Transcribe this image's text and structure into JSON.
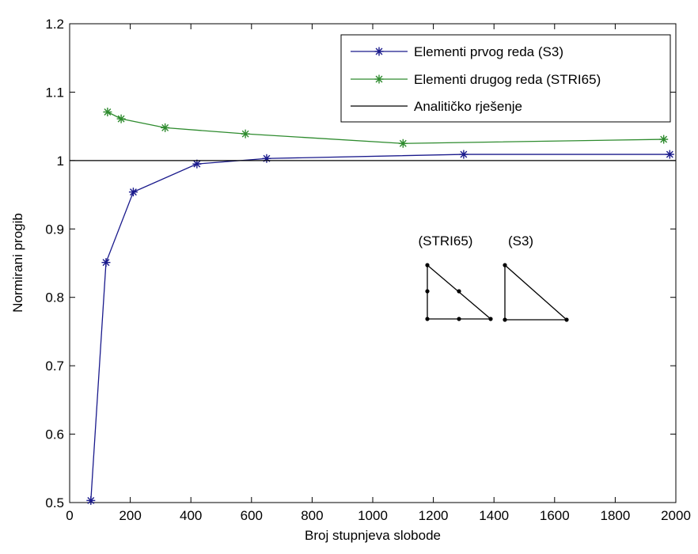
{
  "chart_data": {
    "type": "line",
    "title": "",
    "xlabel": "Broj stupnjeva slobode",
    "ylabel": "Normirani progib",
    "xlim": [
      0,
      2000
    ],
    "ylim": [
      0.5,
      1.2
    ],
    "xticks": [
      0,
      200,
      400,
      600,
      800,
      1000,
      1200,
      1400,
      1600,
      1800,
      2000
    ],
    "yticks": [
      0.5,
      0.6,
      0.7,
      0.8,
      0.9,
      1,
      1.1,
      1.2
    ],
    "grid": false,
    "legend_position": "top-right",
    "series": [
      {
        "name": "Elementi prvog reda (S3)",
        "color": "#1a1a8c",
        "marker": "star",
        "x": [
          70,
          120,
          210,
          420,
          650,
          1300,
          1980
        ],
        "y": [
          0.503,
          0.851,
          0.954,
          0.995,
          1.003,
          1.009,
          1.009
        ]
      },
      {
        "name": "Elementi drugog reda (STRI65)",
        "color": "#2e8b2e",
        "marker": "star",
        "x": [
          125,
          170,
          315,
          580,
          1100,
          1960
        ],
        "y": [
          1.071,
          1.061,
          1.048,
          1.039,
          1.025,
          1.031
        ]
      },
      {
        "name": "Analitičko rješenje",
        "color": "#000000",
        "marker": "none",
        "x": [
          0,
          2000
        ],
        "y": [
          1,
          1
        ]
      }
    ],
    "annotations": {
      "stri65_label": "(STRI65)",
      "s3_label": "(S3)"
    }
  }
}
